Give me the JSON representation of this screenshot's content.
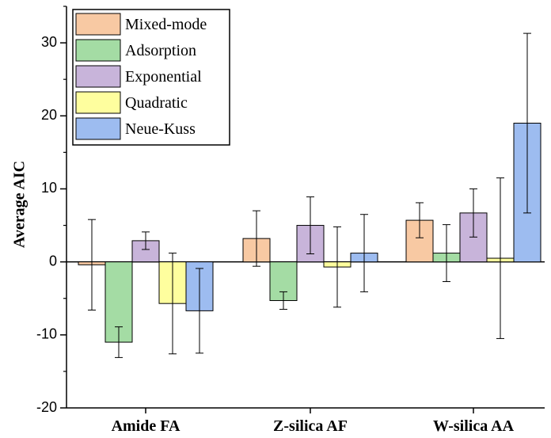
{
  "chart_data": {
    "type": "bar",
    "title": "",
    "xlabel": "",
    "ylabel": "Average AIC",
    "ylim": [
      -20,
      35
    ],
    "yticks": [
      -20,
      -10,
      0,
      10,
      20,
      30
    ],
    "ytick_labels": [
      "-20",
      "-10",
      "0",
      "10",
      "20",
      "30"
    ],
    "categories": [
      "Amide FA",
      "Z-silica AF",
      "W-silica AA"
    ],
    "legend_position": "top-left",
    "grid": false,
    "series": [
      {
        "name": "Mixed-mode",
        "color": "#F8C9A3",
        "values": [
          -0.4,
          3.2,
          5.7
        ],
        "errors": [
          6.2,
          3.8,
          2.4
        ]
      },
      {
        "name": "Adsorption",
        "color": "#A4DCA4",
        "values": [
          -11.0,
          -5.3,
          1.2
        ],
        "errors": [
          2.1,
          1.2,
          3.9
        ]
      },
      {
        "name": "Exponential",
        "color": "#C8B4DA",
        "values": [
          2.9,
          5.0,
          6.7
        ],
        "errors": [
          1.2,
          3.9,
          3.3
        ]
      },
      {
        "name": "Quadratic",
        "color": "#FEFE9E",
        "values": [
          -5.7,
          -0.7,
          0.5
        ],
        "errors": [
          6.9,
          5.5,
          11.0
        ]
      },
      {
        "name": "Neue-Kuss",
        "color": "#9DBCF0",
        "values": [
          -6.7,
          1.2,
          19.0
        ],
        "errors": [
          5.8,
          5.3,
          12.3
        ]
      }
    ]
  }
}
